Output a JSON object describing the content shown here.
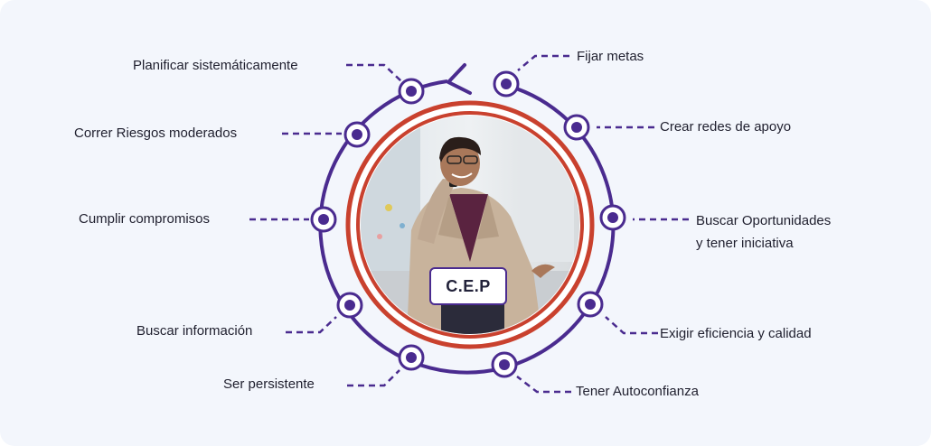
{
  "center_label": "C.E.P",
  "colors": {
    "ring": "#4a2b8f",
    "accent_ring": "#c9412e",
    "node_fill": "#ffffff",
    "node_dot": "#4a2b8f",
    "card_bg": "#f3f6fc"
  },
  "photo": {
    "description_icon": "person-on-phone-photo"
  },
  "left_items": [
    {
      "label": "Planificar sistemáticamente"
    },
    {
      "label": "Correr Riesgos moderados"
    },
    {
      "label": "Cumplir compromisos"
    },
    {
      "label": "Buscar información"
    },
    {
      "label": "Ser persistente"
    }
  ],
  "right_items": [
    {
      "label": "Fijar metas"
    },
    {
      "label": "Crear redes de apoyo"
    },
    {
      "label": "Buscar Oportunidades"
    },
    {
      "label": "y tener iniciativa"
    },
    {
      "label": "Exigir eficiencia y calidad"
    },
    {
      "label": "Tener Autoconfianza"
    }
  ]
}
